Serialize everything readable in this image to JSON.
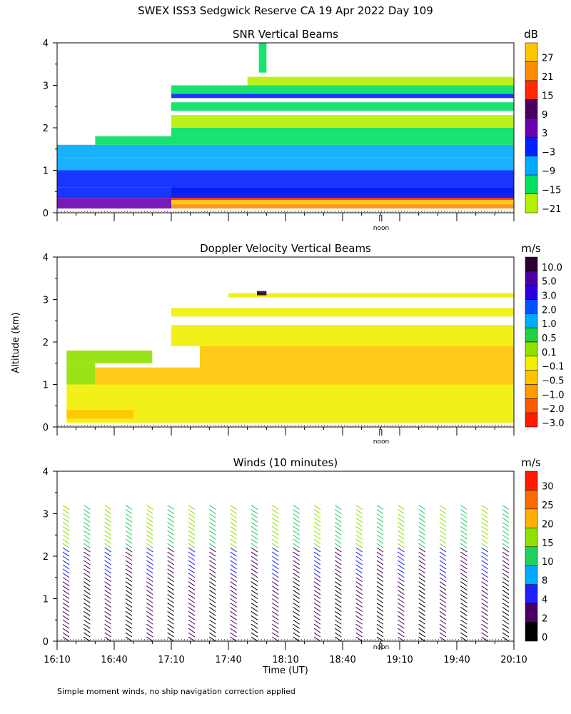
{
  "figure_title": "SWEX ISS3 Sedgwick Reserve CA  19 Apr 2022 Day 109",
  "ylabel": "Altitude (km)",
  "xlabel": "Time (UT)",
  "noon_label": "noon",
  "footnote": "Simple moment winds, no ship navigation correction applied",
  "chart_data": [
    {
      "type": "heatmap",
      "title": "SNR Vertical Beams",
      "ylim": [
        0,
        4
      ],
      "yticks": [
        "0",
        "1",
        "2",
        "3",
        "4"
      ],
      "xlim_minutes_utc": [
        970,
        1210
      ],
      "colorbar": {
        "unit": "dB",
        "labels": [
          "27",
          "21",
          "15",
          "9",
          "3",
          "−3",
          "−9",
          "−15",
          "−21"
        ],
        "colors": [
          "#FFC400",
          "#FF8C00",
          "#FF2A00",
          "#4A0060",
          "#6A00B0",
          "#0020FF",
          "#00AAFF",
          "#00E060",
          "#B6F000"
        ]
      },
      "bands": [
        {
          "alt": [
            0.1,
            0.2
          ],
          "t": [
            1030,
            1210
          ],
          "level": 1
        },
        {
          "alt": [
            0.2,
            0.3
          ],
          "t": [
            1030,
            1210
          ],
          "level": 0
        },
        {
          "alt": [
            0.3,
            0.45
          ],
          "t": [
            1030,
            1210
          ],
          "level": 2
        },
        {
          "alt": [
            0.45,
            0.6
          ],
          "t": [
            1030,
            1210
          ],
          "level": 3
        },
        {
          "alt": [
            0.1,
            0.35
          ],
          "t": [
            970,
            1030
          ],
          "level": 4
        },
        {
          "alt": [
            0.35,
            0.6
          ],
          "t": [
            970,
            1210
          ],
          "level": 5
        },
        {
          "alt": [
            0.6,
            1.0
          ],
          "t": [
            970,
            1210
          ],
          "level": 5
        },
        {
          "alt": [
            1.0,
            1.3
          ],
          "t": [
            970,
            1210
          ],
          "level": 6
        },
        {
          "alt": [
            1.3,
            1.6
          ],
          "t": [
            970,
            1210
          ],
          "level": 6
        },
        {
          "alt": [
            1.6,
            1.8
          ],
          "t": [
            990,
            1210
          ],
          "level": 7
        },
        {
          "alt": [
            1.8,
            2.0
          ],
          "t": [
            1030,
            1210
          ],
          "level": 7
        },
        {
          "alt": [
            2.0,
            2.3
          ],
          "t": [
            1030,
            1210
          ],
          "level": 8
        },
        {
          "alt": [
            2.4,
            2.6
          ],
          "t": [
            1030,
            1210
          ],
          "level": 7
        },
        {
          "alt": [
            2.7,
            2.8
          ],
          "t": [
            1030,
            1210
          ],
          "level": 5
        },
        {
          "alt": [
            2.8,
            3.0
          ],
          "t": [
            1030,
            1210
          ],
          "level": 7
        },
        {
          "alt": [
            3.0,
            3.2
          ],
          "t": [
            1070,
            1210
          ],
          "level": 8
        },
        {
          "alt": [
            3.3,
            4.0
          ],
          "t": [
            1076,
            1080
          ],
          "level": 7
        }
      ]
    },
    {
      "type": "heatmap",
      "title": "Doppler Velocity Vertical Beams",
      "ylim": [
        0,
        4
      ],
      "yticks": [
        "0",
        "1",
        "2",
        "3",
        "4"
      ],
      "xlim_minutes_utc": [
        970,
        1210
      ],
      "colorbar": {
        "unit": "m/s",
        "labels": [
          "10.0",
          "5.0",
          "3.0",
          "2.0",
          "1.0",
          "0.5",
          "0.1",
          "−0.1",
          "−0.5",
          "−1.0",
          "−2.0",
          "−3.0"
        ],
        "colors": [
          "#2A0030",
          "#4A00A0",
          "#2800E0",
          "#0050FF",
          "#00AAFF",
          "#20D040",
          "#90E000",
          "#F0F000",
          "#FFC400",
          "#FF9A00",
          "#FF5A00",
          "#FF1A00"
        ]
      },
      "bands": [
        {
          "alt": [
            0.1,
            1.0
          ],
          "t": [
            975,
            1210
          ],
          "level": 7
        },
        {
          "alt": [
            0.2,
            0.4
          ],
          "t": [
            975,
            1010
          ],
          "level": 8
        },
        {
          "alt": [
            1.0,
            1.4
          ],
          "t": [
            990,
            1210
          ],
          "level": 8
        },
        {
          "alt": [
            1.4,
            1.9
          ],
          "t": [
            1045,
            1210
          ],
          "level": 8
        },
        {
          "alt": [
            1.0,
            1.5
          ],
          "t": [
            975,
            990
          ],
          "level": 6
        },
        {
          "alt": [
            1.5,
            1.8
          ],
          "t": [
            975,
            1020
          ],
          "level": 6
        },
        {
          "alt": [
            1.9,
            2.4
          ],
          "t": [
            1030,
            1210
          ],
          "level": 7
        },
        {
          "alt": [
            2.6,
            2.8
          ],
          "t": [
            1030,
            1210
          ],
          "level": 7
        },
        {
          "alt": [
            3.05,
            3.15
          ],
          "t": [
            1060,
            1210
          ],
          "level": 7
        },
        {
          "alt": [
            3.1,
            3.2
          ],
          "t": [
            1075,
            1080
          ],
          "level": 0
        }
      ]
    },
    {
      "type": "scatter",
      "title": "Winds (10 minutes)",
      "ylim": [
        0,
        4
      ],
      "yticks": [
        "0",
        "1",
        "2",
        "3",
        "4"
      ],
      "xticks": [
        "16:10",
        "16:40",
        "17:10",
        "17:40",
        "18:10",
        "18:40",
        "19:10",
        "19:40",
        "20:10"
      ],
      "xlim_minutes_utc": [
        970,
        1210
      ],
      "colorbar": {
        "unit": "m/s",
        "labels": [
          "30",
          "25",
          "20",
          "15",
          "10",
          "8",
          "4",
          "2",
          "0"
        ],
        "colors": [
          "#FF1A00",
          "#FF6A00",
          "#FFB000",
          "#90E000",
          "#20D060",
          "#00AAFF",
          "#2020FF",
          "#4A0060",
          "#000000"
        ]
      },
      "profiles_times_minutes_utc": [
        973,
        984,
        995,
        1006,
        1017,
        1028,
        1039,
        1050,
        1061,
        1072,
        1083,
        1094,
        1105,
        1116,
        1127,
        1138,
        1149,
        1160,
        1171,
        1182,
        1193,
        1204
      ],
      "barb_altitude_range_km": [
        0.1,
        3.3
      ]
    }
  ]
}
